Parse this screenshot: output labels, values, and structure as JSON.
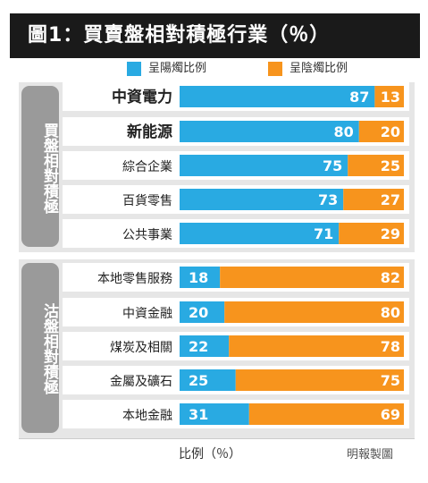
{
  "title": "圖1：買賣盤相對積極行業（％）",
  "colors": {
    "buy": "#29aae2",
    "sell": "#f7941d"
  },
  "groups": [
    {
      "label": "買盤相對積極"
    },
    {
      "label": "沽盤相對積極"
    }
  ],
  "chart_data": {
    "type": "bar",
    "orientation": "horizontal",
    "stacked": true,
    "categories": [
      "中資電力",
      "新能源",
      "綜合企業",
      "百貨零售",
      "公共事業",
      "本地零售服務",
      "中資金融",
      "煤炭及相關",
      "金屬及礦石",
      "本地金融"
    ],
    "series": [
      {
        "name": "呈陽燭比例",
        "values": [
          87,
          80,
          75,
          73,
          71,
          18,
          20,
          22,
          25,
          31
        ]
      },
      {
        "name": "呈陰燭比例",
        "values": [
          13,
          20,
          25,
          27,
          29,
          82,
          80,
          78,
          75,
          69
        ]
      }
    ],
    "xlabel": "比例（％）",
    "xlim": [
      0,
      100
    ],
    "legend": "top",
    "grid": false
  },
  "footer": {
    "unit": "比例（％）",
    "source": "明報製圖"
  }
}
